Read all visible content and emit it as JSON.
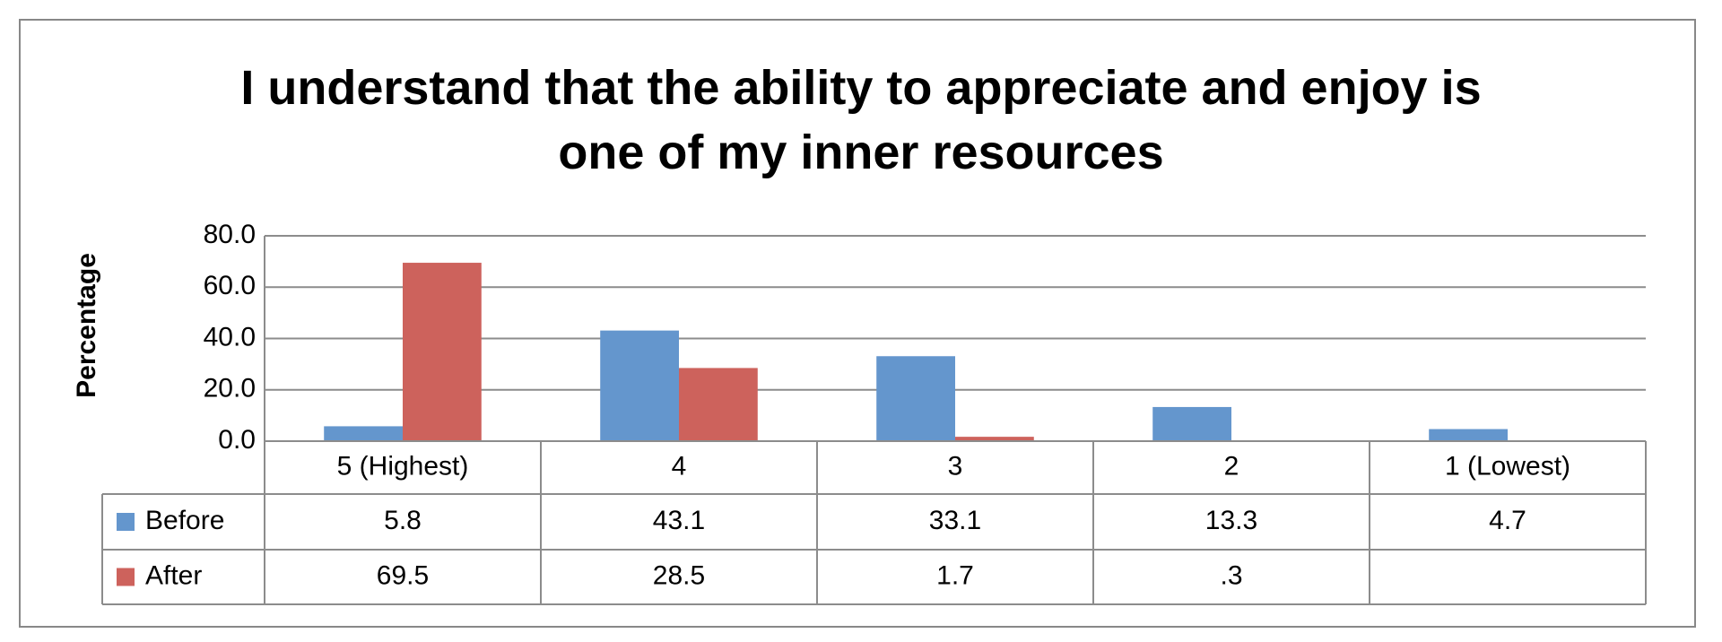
{
  "chart_data": {
    "type": "bar",
    "title": "I understand that the ability to appreciate and enjoy is one of my inner resources",
    "y_label": "Percentage",
    "categories": [
      "5 (Highest)",
      "4",
      "3",
      "2",
      "1 (Lowest)"
    ],
    "series": [
      {
        "name": "Before",
        "color": "#6496cd",
        "values": [
          5.8,
          43.1,
          33.1,
          13.3,
          4.7
        ]
      },
      {
        "name": "After",
        "color": "#cd625c",
        "values": [
          69.5,
          28.5,
          1.7,
          0.3,
          null
        ],
        "value_labels": [
          "69.5",
          "28.5",
          "1.7",
          ".3",
          null
        ]
      }
    ],
    "ylim": [
      0,
      80
    ],
    "yticks": [
      {
        "value": 0,
        "label": "0.0"
      },
      {
        "value": 20,
        "label": "20.0"
      },
      {
        "value": 40,
        "label": "40.0"
      },
      {
        "value": 60,
        "label": "60.0"
      },
      {
        "value": 80,
        "label": "80.0"
      }
    ],
    "grid": true,
    "data_table": true
  }
}
